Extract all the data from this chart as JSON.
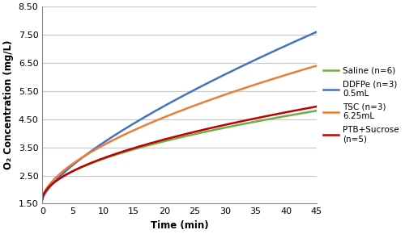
{
  "title": "",
  "xlabel": "Time (min)",
  "ylabel": "O₂ Concentration (mg/L)",
  "xlim": [
    0,
    45
  ],
  "ylim": [
    1.5,
    8.5
  ],
  "xticks": [
    0,
    5,
    10,
    15,
    20,
    25,
    30,
    35,
    40,
    45
  ],
  "yticks": [
    1.5,
    2.5,
    3.5,
    4.5,
    5.5,
    6.5,
    7.5,
    8.5
  ],
  "series": [
    {
      "label": "Saline (n=6)",
      "color": "#70ad47",
      "start": 1.65,
      "end_val": 4.8,
      "power": 0.52
    },
    {
      "label": "DDFPe (n=3)\n0.5mL",
      "color": "#4472c4",
      "start": 1.65,
      "end_val": 7.6,
      "power": 0.72
    },
    {
      "label": "TSC (n=3)\n6.25mL",
      "color": "#ed7d31",
      "start": 1.65,
      "end_val": 6.4,
      "power": 0.6
    },
    {
      "label": "PTB+Sucrose\n(n=5)",
      "color": "#c00000",
      "start": 1.65,
      "end_val": 4.95,
      "power": 0.54
    }
  ],
  "background_color": "#ffffff",
  "grid_color": "#c8c8c8",
  "figsize": [
    5.0,
    2.9
  ],
  "dpi": 100,
  "legend_fontsize": 7.5,
  "axis_fontsize": 8.5,
  "tick_fontsize": 8,
  "linewidth": 1.8
}
